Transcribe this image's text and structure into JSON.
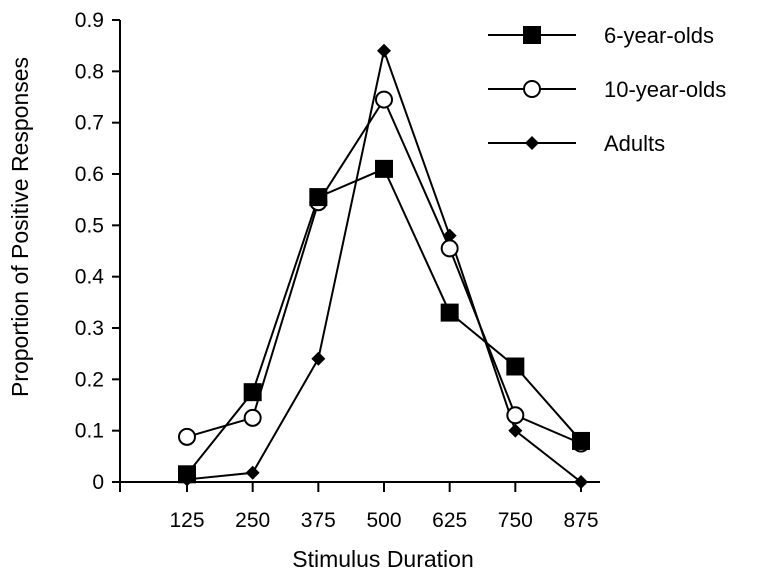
{
  "chart_data": {
    "type": "line",
    "x": [
      125,
      250,
      375,
      500,
      625,
      750,
      875
    ],
    "xlabel": "Stimulus Duration",
    "ylabel": "Proportion of Positive Responses",
    "ylim": [
      0,
      0.9
    ],
    "yticks": [
      0,
      0.1,
      0.2,
      0.3,
      0.4,
      0.5,
      0.6,
      0.7,
      0.8,
      0.9
    ],
    "ytick_labels": [
      "0",
      "0.1",
      "0.2",
      "0.3",
      "0.4",
      "0.5",
      "0.6",
      "0.7",
      "0.8",
      "0.9"
    ],
    "xtick_labels": [
      "125",
      "250",
      "375",
      "500",
      "625",
      "750",
      "875"
    ],
    "grid": false,
    "legend_position": "top-right",
    "series": [
      {
        "name": "6-year-olds",
        "marker": "filled-square",
        "color": "#000000",
        "values": [
          0.015,
          0.175,
          0.555,
          0.61,
          0.33,
          0.225,
          0.08
        ]
      },
      {
        "name": "10-year-olds",
        "marker": "open-circle",
        "color": "#000000",
        "values": [
          0.088,
          0.125,
          0.545,
          0.745,
          0.455,
          0.13,
          0.075
        ]
      },
      {
        "name": "Adults",
        "marker": "filled-diamond",
        "color": "#000000",
        "values": [
          0.005,
          0.018,
          0.24,
          0.84,
          0.48,
          0.1,
          0.0
        ]
      }
    ]
  }
}
